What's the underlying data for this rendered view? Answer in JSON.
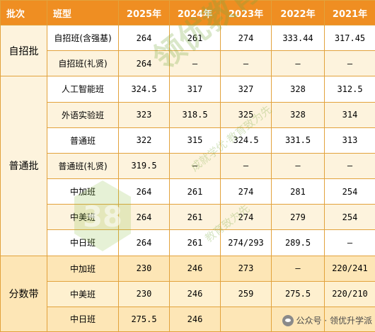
{
  "table": {
    "headers": [
      "批次",
      "班型",
      "2025年",
      "2024年",
      "2023年",
      "2022年",
      "2021年"
    ],
    "groups": [
      {
        "batch": "自招批",
        "rows": [
          {
            "cls": "自招班(含强基)",
            "vals": [
              "264",
              "261",
              "274",
              "333.44",
              "317.45"
            ]
          },
          {
            "cls": "自招班(礼贤)",
            "vals": [
              "264",
              "—",
              "—",
              "—",
              "—"
            ]
          }
        ]
      },
      {
        "batch": "普通批",
        "rows": [
          {
            "cls": "人工智能班",
            "vals": [
              "324.5",
              "317",
              "327",
              "328",
              "312.5"
            ]
          },
          {
            "cls": "外语实验班",
            "vals": [
              "323",
              "318.5",
              "325",
              "328",
              "314"
            ]
          },
          {
            "cls": "普通班",
            "vals": [
              "322",
              "315",
              "324.5",
              "331.5",
              "313"
            ]
          },
          {
            "cls": "普通班(礼贤)",
            "vals": [
              "319.5",
              "—",
              "—",
              "—",
              "—"
            ]
          },
          {
            "cls": "中加班",
            "vals": [
              "264",
              "261",
              "274",
              "281",
              "254"
            ]
          },
          {
            "cls": "中美班",
            "vals": [
              "264",
              "261",
              "274",
              "279",
              "254"
            ]
          },
          {
            "cls": "中日班",
            "vals": [
              "264",
              "261",
              "274/293",
              "289.5",
              "—"
            ]
          }
        ]
      },
      {
        "batch": "分数带",
        "rows": [
          {
            "cls": "中加班",
            "vals": [
              "230",
              "246",
              "273",
              "—",
              "220/241"
            ]
          },
          {
            "cls": "中美班",
            "vals": [
              "230",
              "246",
              "259",
              "275.5",
              "220/210"
            ]
          },
          {
            "cls": "中日班",
            "vals": [
              "275.5",
              "246",
              "",
              "",
              ""
            ]
          }
        ]
      }
    ]
  },
  "watermark": {
    "brand": "领优教育",
    "slogan_1": "成就学优·教育致为先",
    "slogan_2": "教育致为先",
    "logo": "领优-logo"
  },
  "footer": {
    "icon": "wechat-icon",
    "text": "公众号 · 领优升学派"
  }
}
